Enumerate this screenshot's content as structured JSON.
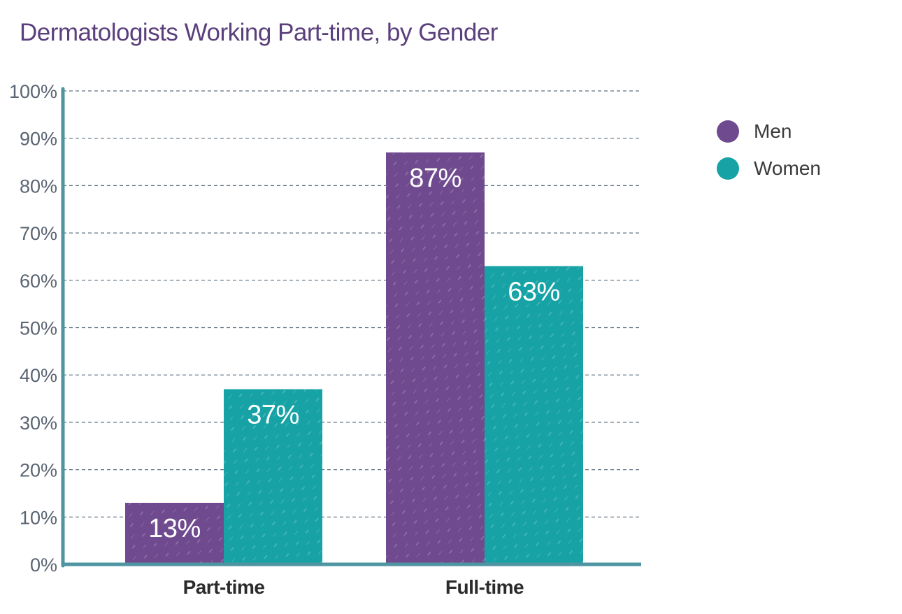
{
  "chart_data": {
    "type": "bar",
    "title": "Dermatologists Working Part-time, by Gender",
    "categories": [
      "Part-time",
      "Full-time"
    ],
    "series": [
      {
        "name": "Men",
        "values": [
          13,
          87
        ],
        "color": "#6f4a8e"
      },
      {
        "name": "Women",
        "values": [
          37,
          63
        ],
        "color": "#17a3a6"
      }
    ],
    "value_labels": [
      [
        "13%",
        "87%"
      ],
      [
        "37%",
        "63%"
      ]
    ],
    "ylim": [
      0,
      100
    ],
    "y_ticks": [
      0,
      10,
      20,
      30,
      40,
      50,
      60,
      70,
      80,
      90,
      100
    ],
    "y_tick_labels": [
      "0%",
      "10%",
      "20%",
      "30%",
      "40%",
      "50%",
      "60%",
      "70%",
      "80%",
      "90%",
      "100%"
    ],
    "xlabel": "",
    "ylabel": "",
    "grid": true,
    "legend_position": "top-right",
    "axis_color": "#4e95a1"
  }
}
